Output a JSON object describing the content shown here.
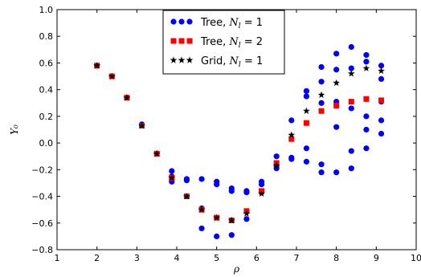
{
  "chart_data": {
    "type": "scatter",
    "xlabel": "ρ",
    "ylabel": "Y₀",
    "xlim": [
      1,
      10
    ],
    "ylim": [
      -0.8,
      1.0
    ],
    "xticks": [
      "1",
      "2",
      "3",
      "4",
      "5",
      "6",
      "7",
      "8",
      "9",
      "10"
    ],
    "yticks": [
      "1.0",
      "0.8",
      "0.6",
      "0.4",
      "0.2",
      "0.0",
      "−0.2",
      "−0.4",
      "−0.6",
      "−0.8"
    ],
    "legend_position": "top-center",
    "series": [
      {
        "name_prefix": "Tree, ",
        "name_math": "Nl = 1",
        "marker": "circle",
        "color": "#0000ff",
        "x": [
          2.0,
          2.375,
          2.75,
          3.125,
          3.5,
          3.875,
          3.875,
          3.875,
          3.875,
          4.25,
          4.25,
          4.25,
          4.625,
          4.625,
          4.625,
          5.0,
          5.0,
          5.0,
          5.375,
          5.375,
          5.375,
          5.75,
          5.75,
          5.75,
          6.125,
          6.125,
          6.125,
          6.5,
          6.5,
          6.5,
          6.875,
          6.875,
          6.875,
          7.25,
          7.25,
          7.25,
          7.25,
          7.625,
          7.625,
          7.625,
          7.625,
          7.625,
          8.0,
          8.0,
          8.0,
          8.0,
          8.0,
          8.375,
          8.375,
          8.375,
          8.375,
          8.375,
          8.75,
          8.75,
          8.75,
          8.75,
          8.75,
          9.125,
          9.125,
          9.125,
          9.125,
          9.125
        ],
        "y": [
          0.58,
          0.5,
          0.34,
          0.14,
          -0.08,
          -0.21,
          -0.25,
          -0.27,
          -0.29,
          -0.27,
          -0.28,
          -0.4,
          -0.27,
          -0.49,
          -0.64,
          -0.29,
          -0.31,
          -0.7,
          -0.34,
          -0.36,
          -0.69,
          -0.36,
          -0.37,
          -0.57,
          -0.29,
          -0.31,
          -0.37,
          -0.1,
          -0.17,
          -0.19,
          0.17,
          -0.11,
          -0.12,
          0.39,
          0.35,
          -0.04,
          -0.14,
          0.57,
          0.46,
          0.3,
          -0.22,
          -0.16,
          0.67,
          0.55,
          0.31,
          0.12,
          -0.22,
          0.72,
          0.56,
          0.26,
          -0.06,
          -0.19,
          0.66,
          0.61,
          0.2,
          0.1,
          -0.04,
          0.58,
          0.48,
          0.31,
          0.17,
          0.07
        ]
      },
      {
        "name_prefix": "Tree, ",
        "name_math": "Nl = 2",
        "marker": "square",
        "color": "#ff0000",
        "x": [
          2.0,
          2.375,
          2.75,
          3.125,
          3.5,
          3.875,
          4.25,
          4.625,
          5.0,
          5.375,
          5.75,
          6.125,
          6.5,
          6.875,
          7.25,
          7.625,
          8.0,
          8.375,
          8.75,
          9.125
        ],
        "y": [
          0.58,
          0.5,
          0.34,
          0.13,
          -0.08,
          -0.26,
          -0.4,
          -0.5,
          -0.56,
          -0.58,
          -0.51,
          -0.36,
          -0.15,
          0.03,
          0.15,
          0.24,
          0.28,
          0.31,
          0.33,
          0.32
        ]
      },
      {
        "name_prefix": "Grid, ",
        "name_math": "Nl = 1",
        "marker": "star",
        "color": "#000000",
        "x": [
          2.0,
          2.375,
          2.75,
          3.125,
          3.5,
          3.875,
          4.25,
          4.625,
          5.0,
          5.375,
          5.75,
          6.125,
          6.5,
          6.875,
          7.25,
          7.625,
          8.0,
          8.375,
          8.75,
          9.125
        ],
        "y": [
          0.58,
          0.5,
          0.34,
          0.13,
          -0.08,
          -0.26,
          -0.4,
          -0.5,
          -0.56,
          -0.58,
          -0.53,
          -0.38,
          -0.17,
          0.06,
          0.24,
          0.36,
          0.45,
          0.52,
          0.56,
          0.54
        ]
      }
    ]
  }
}
